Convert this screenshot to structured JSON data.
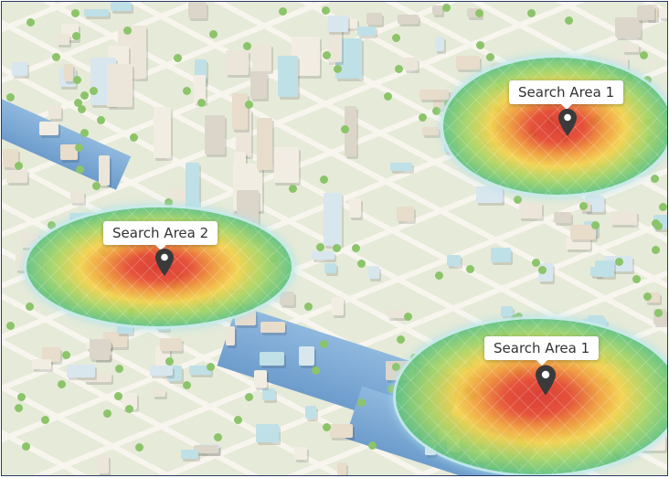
{
  "map": {
    "search_areas": [
      {
        "label": "Search Area 1",
        "icon": "map-pin-icon"
      },
      {
        "label": "Search Area 2",
        "icon": "map-pin-icon"
      },
      {
        "label": "Search Area 1",
        "icon": "map-pin-icon"
      }
    ],
    "colors": {
      "hot": "#d9322b",
      "warm": "#f19a38",
      "mid": "#f3d24a",
      "cool": "#3cb08c",
      "water": "#7aa7d4"
    }
  }
}
